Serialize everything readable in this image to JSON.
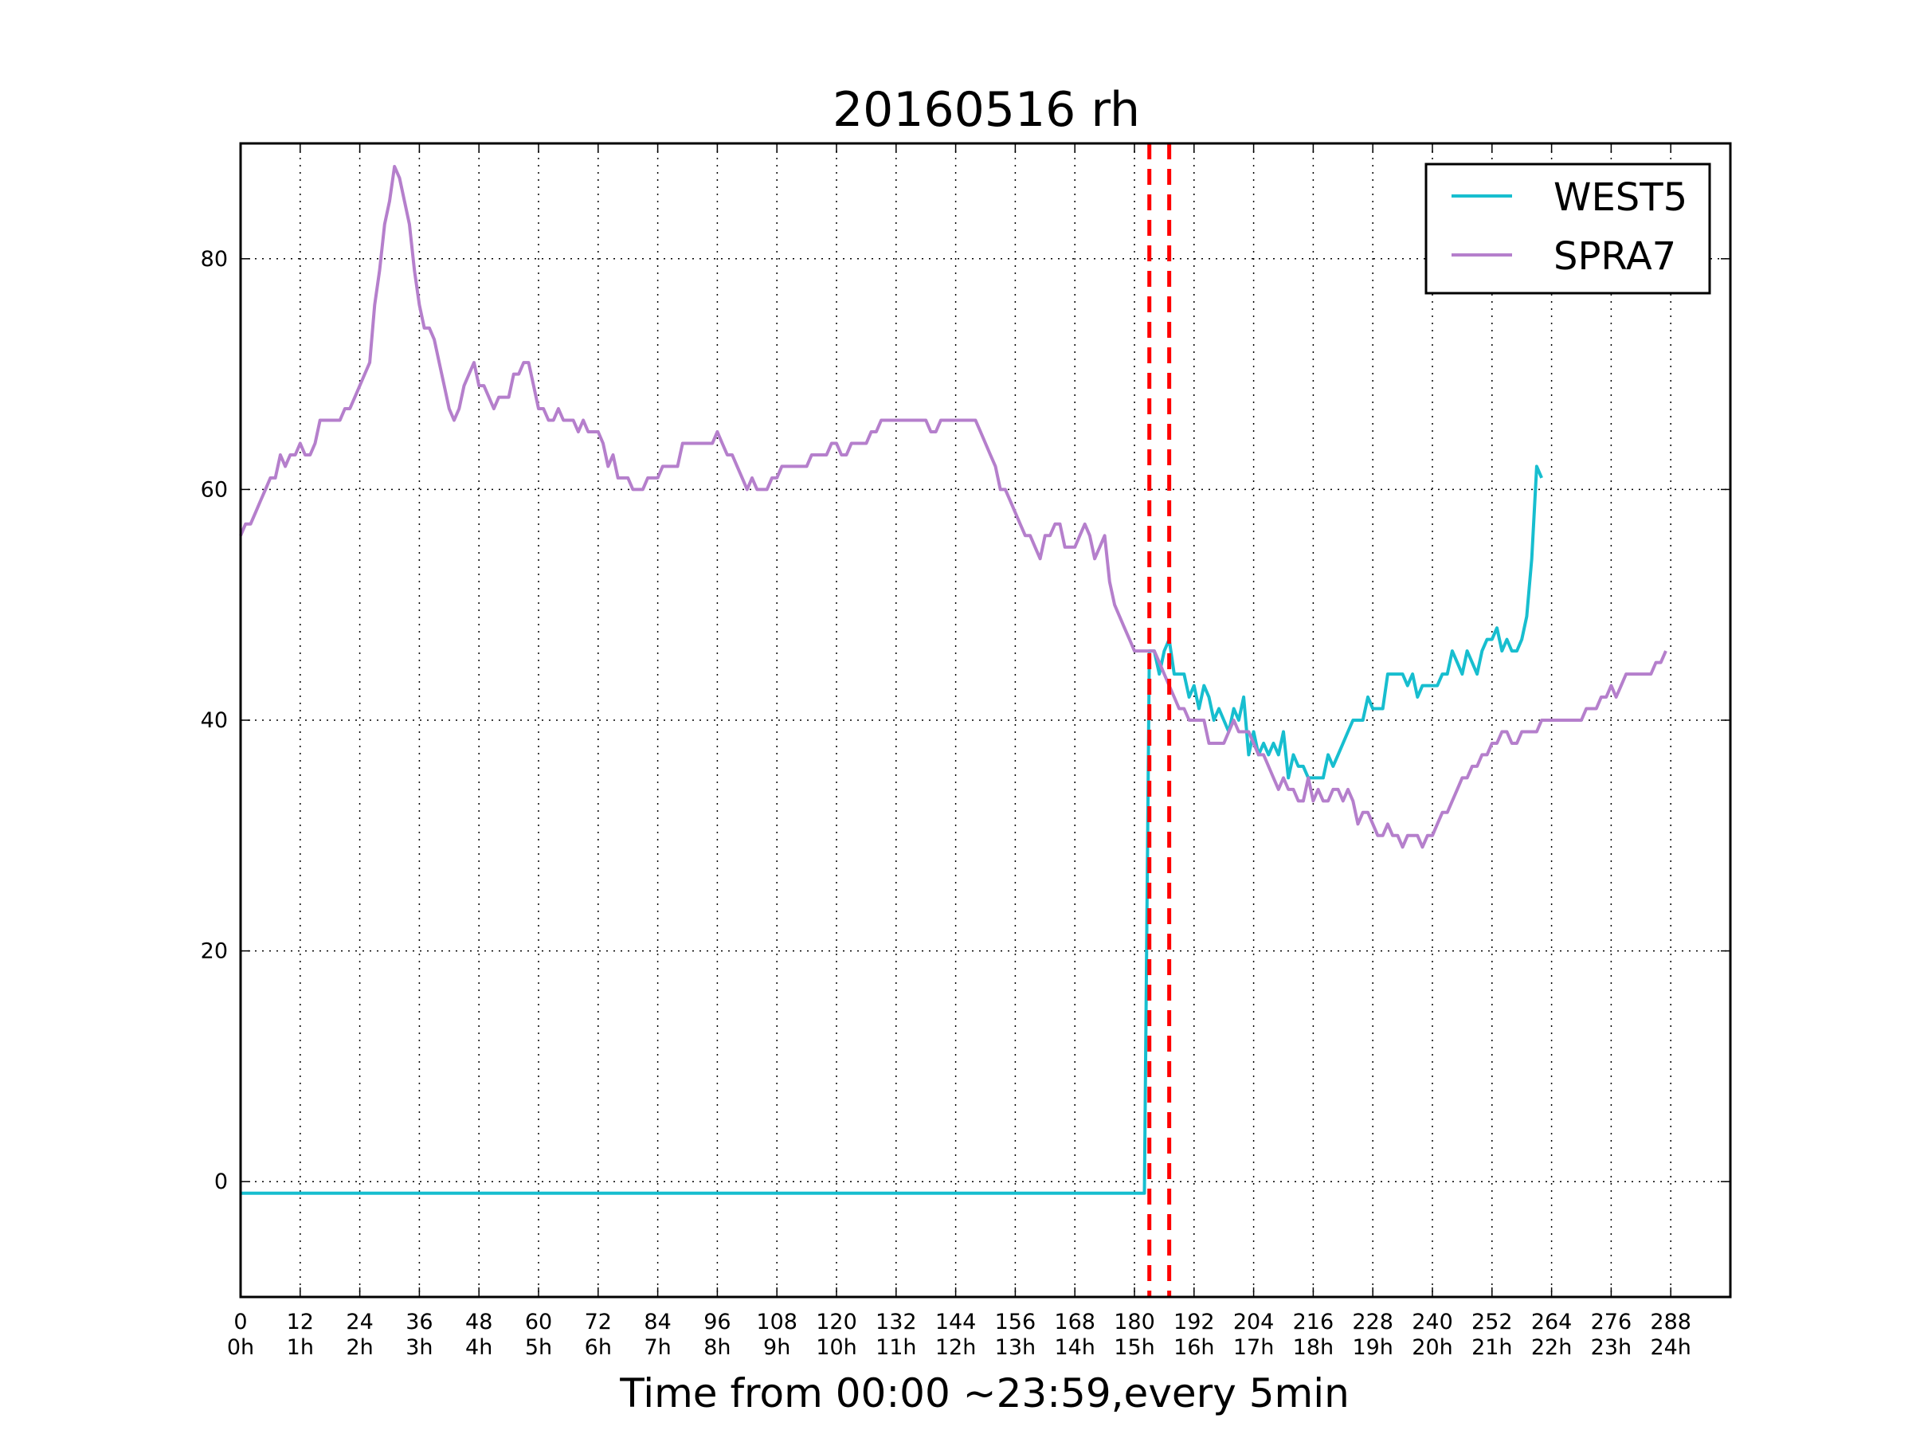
{
  "chart_data": {
    "type": "line",
    "title": "20160516 rh",
    "xlabel": "Time from 00:00 ~23:59,every 5min",
    "ylabel": "",
    "xlim": [
      0,
      300
    ],
    "ylim": [
      -10,
      90
    ],
    "grid": true,
    "legend_position": "top-right",
    "x_ticks": [
      0,
      12,
      24,
      36,
      48,
      60,
      72,
      84,
      96,
      108,
      120,
      132,
      144,
      156,
      168,
      180,
      192,
      204,
      216,
      228,
      240,
      252,
      264,
      276,
      288
    ],
    "x_tick_labels_top": [
      "0",
      "12",
      "24",
      "36",
      "48",
      "60",
      "72",
      "84",
      "96",
      "108",
      "120",
      "132",
      "144",
      "156",
      "168",
      "180",
      "192",
      "204",
      "216",
      "228",
      "240",
      "252",
      "264",
      "276",
      "288"
    ],
    "x_tick_labels_bottom": [
      "0h",
      "1h",
      "2h",
      "3h",
      "4h",
      "5h",
      "6h",
      "7h",
      "8h",
      "9h",
      "10h",
      "11h",
      "12h",
      "13h",
      "14h",
      "15h",
      "16h",
      "17h",
      "18h",
      "19h",
      "20h",
      "21h",
      "22h",
      "23h",
      "24h"
    ],
    "y_ticks": [
      0,
      20,
      40,
      60,
      80
    ],
    "y_tick_labels": [
      "0",
      "20",
      "40",
      "60",
      "80"
    ],
    "vertical_markers": [
      {
        "x": 183,
        "color": "#ff0000",
        "style": "dashed"
      },
      {
        "x": 187,
        "color": "#ff0000",
        "style": "dashed"
      }
    ],
    "series": [
      {
        "name": "WEST5",
        "color": "#17becf",
        "points": [
          [
            0,
            -1
          ],
          [
            182,
            -1
          ],
          [
            183,
            46
          ],
          [
            184,
            46
          ],
          [
            185,
            44
          ],
          [
            186,
            46
          ],
          [
            187,
            47
          ],
          [
            188,
            44
          ],
          [
            190,
            44
          ],
          [
            191,
            42
          ],
          [
            192,
            43
          ],
          [
            193,
            41
          ],
          [
            194,
            43
          ],
          [
            195,
            42
          ],
          [
            196,
            40
          ],
          [
            197,
            41
          ],
          [
            198,
            40
          ],
          [
            199,
            39
          ],
          [
            200,
            41
          ],
          [
            201,
            40
          ],
          [
            202,
            42
          ],
          [
            203,
            37
          ],
          [
            204,
            39
          ],
          [
            205,
            37
          ],
          [
            206,
            38
          ],
          [
            207,
            37
          ],
          [
            208,
            38
          ],
          [
            209,
            37
          ],
          [
            210,
            39
          ],
          [
            211,
            35
          ],
          [
            212,
            37
          ],
          [
            213,
            36
          ],
          [
            214,
            36
          ],
          [
            215,
            35
          ],
          [
            218,
            35
          ],
          [
            219,
            37
          ],
          [
            220,
            36
          ],
          [
            221,
            37
          ],
          [
            222,
            38
          ],
          [
            223,
            39
          ],
          [
            224,
            40
          ],
          [
            226,
            40
          ],
          [
            227,
            42
          ],
          [
            228,
            41
          ],
          [
            230,
            41
          ],
          [
            231,
            44
          ],
          [
            234,
            44
          ],
          [
            235,
            43
          ],
          [
            236,
            44
          ],
          [
            237,
            42
          ],
          [
            238,
            43
          ],
          [
            241,
            43
          ],
          [
            242,
            44
          ],
          [
            243,
            44
          ],
          [
            244,
            46
          ],
          [
            245,
            45
          ],
          [
            246,
            44
          ],
          [
            247,
            46
          ],
          [
            248,
            45
          ],
          [
            249,
            44
          ],
          [
            250,
            46
          ],
          [
            251,
            47
          ],
          [
            252,
            47
          ],
          [
            253,
            48
          ],
          [
            254,
            46
          ],
          [
            255,
            47
          ],
          [
            256,
            46
          ],
          [
            257,
            46
          ],
          [
            258,
            47
          ],
          [
            259,
            49
          ],
          [
            260,
            54
          ],
          [
            261,
            62
          ],
          [
            262,
            61
          ]
        ]
      },
      {
        "name": "SPRA7",
        "color": "#b57fcc",
        "points": [
          [
            0,
            56
          ],
          [
            1,
            57
          ],
          [
            2,
            57
          ],
          [
            3,
            58
          ],
          [
            4,
            59
          ],
          [
            5,
            60
          ],
          [
            6,
            61
          ],
          [
            7,
            61
          ],
          [
            8,
            63
          ],
          [
            9,
            62
          ],
          [
            10,
            63
          ],
          [
            11,
            63
          ],
          [
            12,
            64
          ],
          [
            13,
            63
          ],
          [
            14,
            63
          ],
          [
            15,
            64
          ],
          [
            16,
            66
          ],
          [
            20,
            66
          ],
          [
            21,
            67
          ],
          [
            22,
            67
          ],
          [
            23,
            68
          ],
          [
            24,
            69
          ],
          [
            25,
            70
          ],
          [
            26,
            71
          ],
          [
            27,
            76
          ],
          [
            28,
            79
          ],
          [
            29,
            83
          ],
          [
            30,
            85
          ],
          [
            31,
            88
          ],
          [
            32,
            87
          ],
          [
            33,
            85
          ],
          [
            34,
            83
          ],
          [
            35,
            79
          ],
          [
            36,
            76
          ],
          [
            37,
            74
          ],
          [
            38,
            74
          ],
          [
            39,
            73
          ],
          [
            40,
            71
          ],
          [
            41,
            69
          ],
          [
            42,
            67
          ],
          [
            43,
            66
          ],
          [
            44,
            67
          ],
          [
            45,
            69
          ],
          [
            46,
            70
          ],
          [
            47,
            71
          ],
          [
            48,
            69
          ],
          [
            49,
            69
          ],
          [
            50,
            68
          ],
          [
            51,
            67
          ],
          [
            52,
            68
          ],
          [
            54,
            68
          ],
          [
            55,
            70
          ],
          [
            56,
            70
          ],
          [
            57,
            71
          ],
          [
            58,
            71
          ],
          [
            59,
            69
          ],
          [
            60,
            67
          ],
          [
            61,
            67
          ],
          [
            62,
            66
          ],
          [
            63,
            66
          ],
          [
            64,
            67
          ],
          [
            65,
            66
          ],
          [
            67,
            66
          ],
          [
            68,
            65
          ],
          [
            69,
            66
          ],
          [
            70,
            65
          ],
          [
            72,
            65
          ],
          [
            73,
            64
          ],
          [
            74,
            62
          ],
          [
            75,
            63
          ],
          [
            76,
            61
          ],
          [
            78,
            61
          ],
          [
            79,
            60
          ],
          [
            81,
            60
          ],
          [
            82,
            61
          ],
          [
            84,
            61
          ],
          [
            85,
            62
          ],
          [
            88,
            62
          ],
          [
            89,
            64
          ],
          [
            95,
            64
          ],
          [
            96,
            65
          ],
          [
            97,
            64
          ],
          [
            98,
            63
          ],
          [
            99,
            63
          ],
          [
            100,
            62
          ],
          [
            101,
            61
          ],
          [
            102,
            60
          ],
          [
            103,
            61
          ],
          [
            104,
            60
          ],
          [
            106,
            60
          ],
          [
            107,
            61
          ],
          [
            108,
            61
          ],
          [
            109,
            62
          ],
          [
            114,
            62
          ],
          [
            115,
            63
          ],
          [
            118,
            63
          ],
          [
            119,
            64
          ],
          [
            120,
            64
          ],
          [
            121,
            63
          ],
          [
            122,
            63
          ],
          [
            123,
            64
          ],
          [
            126,
            64
          ],
          [
            127,
            65
          ],
          [
            128,
            65
          ],
          [
            129,
            66
          ],
          [
            138,
            66
          ],
          [
            139,
            65
          ],
          [
            140,
            65
          ],
          [
            141,
            66
          ],
          [
            148,
            66
          ],
          [
            149,
            65
          ],
          [
            150,
            64
          ],
          [
            151,
            63
          ],
          [
            152,
            62
          ],
          [
            153,
            60
          ],
          [
            154,
            60
          ],
          [
            155,
            59
          ],
          [
            156,
            58
          ],
          [
            157,
            57
          ],
          [
            158,
            56
          ],
          [
            159,
            56
          ],
          [
            160,
            55
          ],
          [
            161,
            54
          ],
          [
            162,
            56
          ],
          [
            163,
            56
          ],
          [
            164,
            57
          ],
          [
            165,
            57
          ],
          [
            166,
            55
          ],
          [
            167,
            55
          ],
          [
            168,
            55
          ],
          [
            169,
            56
          ],
          [
            170,
            57
          ],
          [
            171,
            56
          ],
          [
            172,
            54
          ],
          [
            173,
            55
          ],
          [
            174,
            56
          ],
          [
            175,
            52
          ],
          [
            176,
            50
          ],
          [
            177,
            49
          ],
          [
            178,
            48
          ],
          [
            179,
            47
          ],
          [
            180,
            46
          ],
          [
            184,
            46
          ],
          [
            185,
            45
          ],
          [
            186,
            44
          ],
          [
            187,
            43
          ],
          [
            188,
            42
          ],
          [
            189,
            41
          ],
          [
            190,
            41
          ],
          [
            191,
            40
          ],
          [
            194,
            40
          ],
          [
            195,
            38
          ],
          [
            198,
            38
          ],
          [
            199,
            39
          ],
          [
            200,
            40
          ],
          [
            201,
            39
          ],
          [
            203,
            39
          ],
          [
            204,
            38
          ],
          [
            205,
            37
          ],
          [
            206,
            37
          ],
          [
            207,
            36
          ],
          [
            208,
            35
          ],
          [
            209,
            34
          ],
          [
            210,
            35
          ],
          [
            211,
            34
          ],
          [
            212,
            34
          ],
          [
            213,
            33
          ],
          [
            214,
            33
          ],
          [
            215,
            35
          ],
          [
            216,
            33
          ],
          [
            217,
            34
          ],
          [
            218,
            33
          ],
          [
            219,
            33
          ],
          [
            220,
            34
          ],
          [
            221,
            34
          ],
          [
            222,
            33
          ],
          [
            223,
            34
          ],
          [
            224,
            33
          ],
          [
            225,
            31
          ],
          [
            226,
            32
          ],
          [
            227,
            32
          ],
          [
            228,
            31
          ],
          [
            229,
            30
          ],
          [
            230,
            30
          ],
          [
            231,
            31
          ],
          [
            232,
            30
          ],
          [
            233,
            30
          ],
          [
            234,
            29
          ],
          [
            235,
            30
          ],
          [
            236,
            30
          ],
          [
            237,
            30
          ],
          [
            238,
            29
          ],
          [
            239,
            30
          ],
          [
            240,
            30
          ],
          [
            241,
            31
          ],
          [
            242,
            32
          ],
          [
            243,
            32
          ],
          [
            244,
            33
          ],
          [
            245,
            34
          ],
          [
            246,
            35
          ],
          [
            247,
            35
          ],
          [
            248,
            36
          ],
          [
            249,
            36
          ],
          [
            250,
            37
          ],
          [
            251,
            37
          ],
          [
            252,
            38
          ],
          [
            253,
            38
          ],
          [
            254,
            39
          ],
          [
            255,
            39
          ],
          [
            256,
            38
          ],
          [
            257,
            38
          ],
          [
            258,
            39
          ],
          [
            261,
            39
          ],
          [
            262,
            40
          ],
          [
            270,
            40
          ],
          [
            271,
            41
          ],
          [
            273,
            41
          ],
          [
            274,
            42
          ],
          [
            275,
            42
          ],
          [
            276,
            43
          ],
          [
            277,
            42
          ],
          [
            278,
            43
          ],
          [
            279,
            44
          ],
          [
            284,
            44
          ],
          [
            285,
            45
          ],
          [
            286,
            45
          ],
          [
            287,
            46
          ]
        ]
      }
    ]
  }
}
